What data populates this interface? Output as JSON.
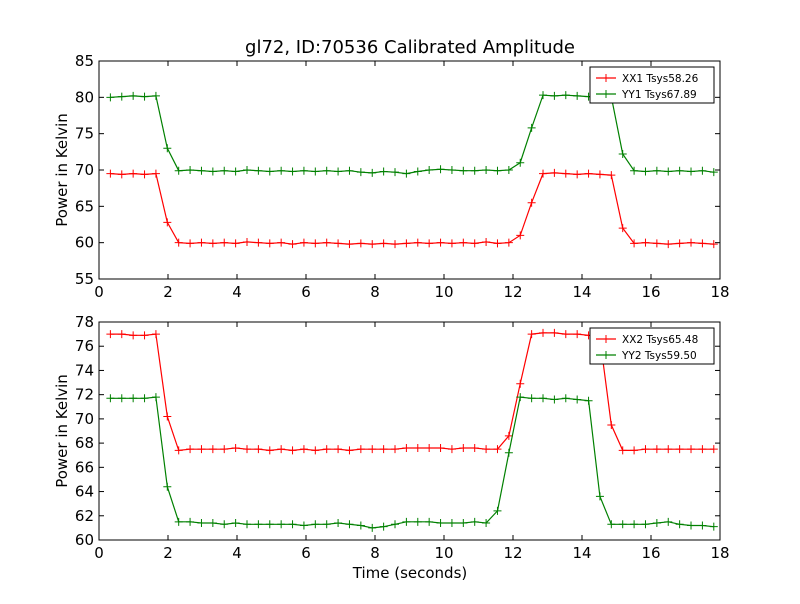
{
  "figure_title": "gl72, ID:70536 Calibrated Amplitude",
  "xlabel": "Time (seconds)",
  "chart_data": [
    {
      "type": "line",
      "title": "gl72, ID:70536 Calibrated Amplitude",
      "xlabel": "",
      "ylabel": "Power in Kelvin",
      "xlim": [
        0,
        18
      ],
      "ylim": [
        55,
        85
      ],
      "xticks": [
        0,
        2,
        4,
        6,
        8,
        10,
        12,
        14,
        16,
        18
      ],
      "yticks": [
        55,
        60,
        65,
        70,
        75,
        80,
        85
      ],
      "legend_position": "top-right",
      "x": [
        0.33,
        0.66,
        0.99,
        1.32,
        1.65,
        1.98,
        2.31,
        2.64,
        2.97,
        3.3,
        3.63,
        3.96,
        4.29,
        4.62,
        4.95,
        5.28,
        5.61,
        5.94,
        6.27,
        6.6,
        6.93,
        7.26,
        7.59,
        7.92,
        8.25,
        8.58,
        8.91,
        9.24,
        9.57,
        9.9,
        10.23,
        10.56,
        10.89,
        11.22,
        11.55,
        11.88,
        12.21,
        12.54,
        12.87,
        13.2,
        13.53,
        13.86,
        14.19,
        14.52,
        14.85,
        15.18,
        15.51,
        15.84,
        16.17,
        16.5,
        16.83,
        17.16,
        17.49,
        17.82
      ],
      "series": [
        {
          "name": "XX1 Tsys58.26",
          "color": "#ff0000",
          "values": [
            69.5,
            69.4,
            69.5,
            69.4,
            69.5,
            62.8,
            60.0,
            59.9,
            60.0,
            59.9,
            60.0,
            59.9,
            60.1,
            60.0,
            59.9,
            60.0,
            59.8,
            60.0,
            59.9,
            60.0,
            59.9,
            59.8,
            59.9,
            59.8,
            59.9,
            59.8,
            59.9,
            60.0,
            59.9,
            60.0,
            59.9,
            60.0,
            59.9,
            60.1,
            59.9,
            60.0,
            61.0,
            65.5,
            69.5,
            69.6,
            69.5,
            69.4,
            69.5,
            69.4,
            69.3,
            62.0,
            59.9,
            60.0,
            59.9,
            59.8,
            59.9,
            60.0,
            59.9,
            59.8
          ]
        },
        {
          "name": "YY1 Tsys67.89",
          "color": "#008000",
          "values": [
            80.0,
            80.1,
            80.2,
            80.1,
            80.2,
            73.0,
            69.9,
            70.0,
            69.9,
            69.8,
            69.9,
            69.8,
            70.0,
            69.9,
            69.8,
            69.9,
            69.8,
            69.9,
            69.8,
            69.9,
            69.8,
            69.9,
            69.7,
            69.6,
            69.8,
            69.7,
            69.5,
            69.8,
            70.0,
            70.1,
            70.0,
            69.9,
            69.9,
            70.0,
            69.9,
            70.0,
            71.0,
            75.8,
            80.3,
            80.2,
            80.3,
            80.2,
            80.1,
            80.0,
            80.1,
            72.2,
            69.9,
            69.8,
            69.9,
            69.8,
            69.9,
            69.8,
            69.9,
            69.7
          ]
        }
      ]
    },
    {
      "type": "line",
      "title": "",
      "xlabel": "Time (seconds)",
      "ylabel": "Power in Kelvin",
      "xlim": [
        0,
        18
      ],
      "ylim": [
        60,
        78
      ],
      "xticks": [
        0,
        2,
        4,
        6,
        8,
        10,
        12,
        14,
        16,
        18
      ],
      "yticks": [
        60,
        62,
        64,
        66,
        68,
        70,
        72,
        74,
        76,
        78
      ],
      "legend_position": "top-right",
      "x": [
        0.33,
        0.66,
        0.99,
        1.32,
        1.65,
        1.98,
        2.31,
        2.64,
        2.97,
        3.3,
        3.63,
        3.96,
        4.29,
        4.62,
        4.95,
        5.28,
        5.61,
        5.94,
        6.27,
        6.6,
        6.93,
        7.26,
        7.59,
        7.92,
        8.25,
        8.58,
        8.91,
        9.24,
        9.57,
        9.9,
        10.23,
        10.56,
        10.89,
        11.22,
        11.55,
        11.88,
        12.21,
        12.54,
        12.87,
        13.2,
        13.53,
        13.86,
        14.19,
        14.52,
        14.85,
        15.18,
        15.51,
        15.84,
        16.17,
        16.5,
        16.83,
        17.16,
        17.49,
        17.82
      ],
      "series": [
        {
          "name": "XX2 Tsys65.48",
          "color": "#ff0000",
          "values": [
            77.0,
            77.0,
            76.9,
            76.9,
            77.0,
            70.2,
            67.4,
            67.5,
            67.5,
            67.5,
            67.5,
            67.6,
            67.5,
            67.5,
            67.4,
            67.5,
            67.4,
            67.5,
            67.4,
            67.5,
            67.5,
            67.4,
            67.5,
            67.5,
            67.5,
            67.5,
            67.6,
            67.6,
            67.6,
            67.6,
            67.5,
            67.6,
            67.6,
            67.5,
            67.5,
            68.6,
            72.9,
            77.0,
            77.1,
            77.1,
            77.0,
            77.0,
            76.9,
            76.7,
            69.5,
            67.4,
            67.4,
            67.5,
            67.5,
            67.5,
            67.5,
            67.5,
            67.5,
            67.5
          ]
        },
        {
          "name": "YY2 Tsys59.50",
          "color": "#008000",
          "values": [
            71.7,
            71.7,
            71.7,
            71.7,
            71.8,
            64.4,
            61.5,
            61.5,
            61.4,
            61.4,
            61.3,
            61.4,
            61.3,
            61.3,
            61.3,
            61.3,
            61.3,
            61.2,
            61.3,
            61.3,
            61.4,
            61.3,
            61.2,
            61.0,
            61.1,
            61.3,
            61.5,
            61.5,
            61.5,
            61.4,
            61.4,
            61.4,
            61.5,
            61.4,
            62.4,
            67.2,
            71.8,
            71.7,
            71.7,
            71.6,
            71.7,
            71.6,
            71.5,
            63.6,
            61.3,
            61.3,
            61.3,
            61.3,
            61.4,
            61.5,
            61.3,
            61.2,
            61.2,
            61.1
          ]
        }
      ]
    }
  ]
}
